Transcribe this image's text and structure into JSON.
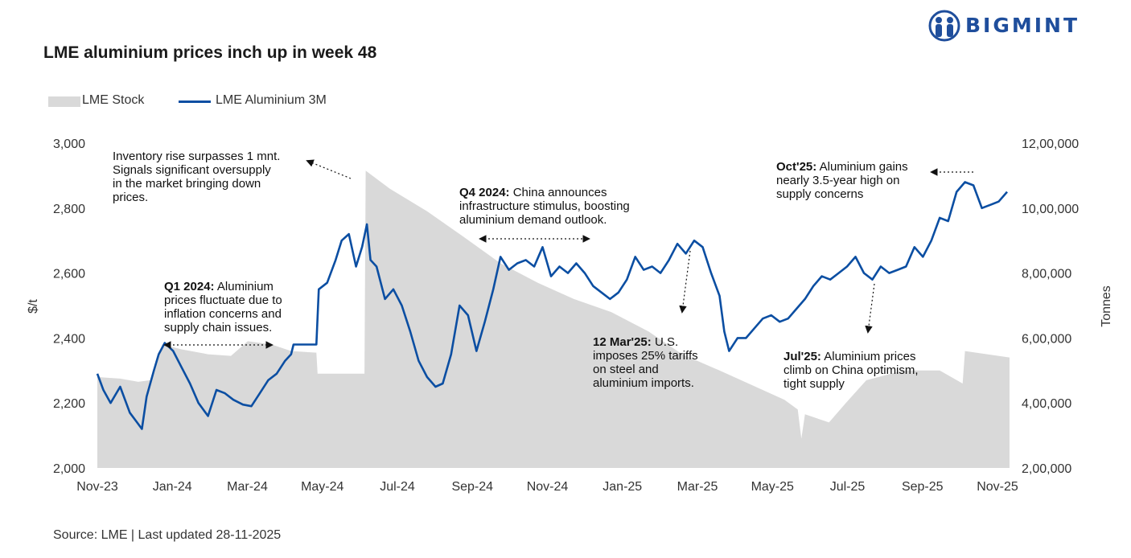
{
  "brand": {
    "name": "BIGMINT",
    "logo_icon": "people-circle-icon",
    "color": "#1f4e9c"
  },
  "title": "LME aluminium prices inch up in week 48",
  "source": "Source: LME | Last updated 28-11-2025",
  "chart_data": {
    "type": "line",
    "title": "LME aluminium prices inch up in week 48",
    "legend": {
      "placement": "top-left",
      "items": [
        "LME Stock",
        "LME Aluminium 3M"
      ]
    },
    "colors": {
      "stock": "#d9d9d9",
      "price": "#0b4ea2",
      "annotation": "#111111"
    },
    "grid": false,
    "xlabel": "",
    "ylabel": "$/t",
    "y2label": "Tonnes",
    "x_tick_labels": [
      "Nov-23",
      "Jan-24",
      "Mar-24",
      "May-24",
      "Jul-24",
      "Sep-24",
      "Nov-24",
      "Jan-25",
      "Mar-25",
      "May-25",
      "Jul-25",
      "Sep-25",
      "Nov-25"
    ],
    "x_range": [
      "2023-11-01",
      "2025-11-28"
    ],
    "ylim": [
      2000,
      3000
    ],
    "y_ticks": [
      2000,
      2200,
      2400,
      2600,
      2800,
      3000
    ],
    "y_tick_labels": [
      "2,000",
      "2,200",
      "2,400",
      "2,600",
      "2,800",
      "3,000"
    ],
    "y2lim": [
      200000,
      1200000
    ],
    "y2_ticks": [
      200000,
      400000,
      600000,
      800000,
      1000000,
      1200000
    ],
    "y2_tick_labels": [
      "2,00,000",
      "4,00,000",
      "6,00,000",
      "8,00,000",
      "10,00,000",
      "12,00,000"
    ],
    "series": [
      {
        "name": "LME Stock",
        "type": "area",
        "axis": "right",
        "points": [
          [
            "2023-11-01",
            480000
          ],
          [
            "2023-11-20",
            475000
          ],
          [
            "2023-12-05",
            465000
          ],
          [
            "2023-12-15",
            470000
          ],
          [
            "2023-12-25",
            580000
          ],
          [
            "2024-01-10",
            565000
          ],
          [
            "2024-02-01",
            550000
          ],
          [
            "2024-02-20",
            545000
          ],
          [
            "2024-03-05",
            590000
          ],
          [
            "2024-03-25",
            580000
          ],
          [
            "2024-04-10",
            560000
          ],
          [
            "2024-05-01",
            555000
          ],
          [
            "2024-05-02",
            490000
          ],
          [
            "2024-06-10",
            490000
          ],
          [
            "2024-06-11",
            1115000
          ],
          [
            "2024-07-01",
            1060000
          ],
          [
            "2024-08-01",
            990000
          ],
          [
            "2024-09-01",
            910000
          ],
          [
            "2024-10-01",
            830000
          ],
          [
            "2024-11-01",
            770000
          ],
          [
            "2024-12-01",
            720000
          ],
          [
            "2025-01-01",
            680000
          ],
          [
            "2025-02-01",
            620000
          ],
          [
            "2025-03-01",
            550000
          ],
          [
            "2025-04-01",
            500000
          ],
          [
            "2025-05-01",
            450000
          ],
          [
            "2025-05-25",
            410000
          ],
          [
            "2025-06-05",
            380000
          ],
          [
            "2025-06-08",
            290000
          ],
          [
            "2025-06-11",
            365000
          ],
          [
            "2025-07-01",
            340000
          ],
          [
            "2025-07-15",
            400000
          ],
          [
            "2025-08-01",
            470000
          ],
          [
            "2025-09-01",
            500000
          ],
          [
            "2025-10-01",
            500000
          ],
          [
            "2025-10-20",
            460000
          ],
          [
            "2025-10-22",
            560000
          ],
          [
            "2025-11-28",
            540000
          ]
        ]
      },
      {
        "name": "LME Aluminium 3M",
        "type": "line",
        "axis": "left",
        "points": [
          [
            "2023-11-01",
            2290
          ],
          [
            "2023-11-06",
            2240
          ],
          [
            "2023-11-12",
            2200
          ],
          [
            "2023-11-20",
            2250
          ],
          [
            "2023-11-28",
            2170
          ],
          [
            "2023-12-04",
            2140
          ],
          [
            "2023-12-08",
            2120
          ],
          [
            "2023-12-12",
            2220
          ],
          [
            "2023-12-18",
            2300
          ],
          [
            "2023-12-22",
            2350
          ],
          [
            "2023-12-27",
            2385
          ],
          [
            "2024-01-03",
            2360
          ],
          [
            "2024-01-10",
            2310
          ],
          [
            "2024-01-17",
            2260
          ],
          [
            "2024-01-24",
            2200
          ],
          [
            "2024-02-01",
            2160
          ],
          [
            "2024-02-08",
            2240
          ],
          [
            "2024-02-15",
            2230
          ],
          [
            "2024-02-22",
            2210
          ],
          [
            "2024-03-01",
            2195
          ],
          [
            "2024-03-08",
            2190
          ],
          [
            "2024-03-15",
            2230
          ],
          [
            "2024-03-22",
            2270
          ],
          [
            "2024-03-29",
            2290
          ],
          [
            "2024-04-05",
            2330
          ],
          [
            "2024-04-10",
            2350
          ],
          [
            "2024-04-12",
            2380
          ],
          [
            "2024-05-01",
            2380
          ],
          [
            "2024-05-03",
            2550
          ],
          [
            "2024-05-10",
            2570
          ],
          [
            "2024-05-17",
            2640
          ],
          [
            "2024-05-22",
            2700
          ],
          [
            "2024-05-28",
            2720
          ],
          [
            "2024-06-03",
            2620
          ],
          [
            "2024-06-08",
            2680
          ],
          [
            "2024-06-12",
            2750
          ],
          [
            "2024-06-15",
            2640
          ],
          [
            "2024-06-20",
            2620
          ],
          [
            "2024-06-27",
            2520
          ],
          [
            "2024-07-04",
            2550
          ],
          [
            "2024-07-11",
            2500
          ],
          [
            "2024-07-18",
            2420
          ],
          [
            "2024-07-25",
            2330
          ],
          [
            "2024-08-01",
            2280
          ],
          [
            "2024-08-08",
            2250
          ],
          [
            "2024-08-14",
            2260
          ],
          [
            "2024-08-21",
            2350
          ],
          [
            "2024-08-28",
            2500
          ],
          [
            "2024-09-04",
            2470
          ],
          [
            "2024-09-11",
            2360
          ],
          [
            "2024-09-18",
            2450
          ],
          [
            "2024-09-25",
            2550
          ],
          [
            "2024-10-01",
            2650
          ],
          [
            "2024-10-08",
            2610
          ],
          [
            "2024-10-15",
            2630
          ],
          [
            "2024-10-22",
            2640
          ],
          [
            "2024-10-29",
            2620
          ],
          [
            "2024-11-05",
            2680
          ],
          [
            "2024-11-12",
            2590
          ],
          [
            "2024-11-19",
            2620
          ],
          [
            "2024-11-26",
            2600
          ],
          [
            "2024-12-03",
            2630
          ],
          [
            "2024-12-10",
            2600
          ],
          [
            "2024-12-17",
            2560
          ],
          [
            "2024-12-24",
            2540
          ],
          [
            "2024-12-31",
            2520
          ],
          [
            "2025-01-07",
            2540
          ],
          [
            "2025-01-14",
            2580
          ],
          [
            "2025-01-21",
            2650
          ],
          [
            "2025-01-28",
            2610
          ],
          [
            "2025-02-04",
            2620
          ],
          [
            "2025-02-11",
            2600
          ],
          [
            "2025-02-18",
            2640
          ],
          [
            "2025-02-25",
            2690
          ],
          [
            "2025-03-04",
            2660
          ],
          [
            "2025-03-11",
            2700
          ],
          [
            "2025-03-18",
            2680
          ],
          [
            "2025-03-25",
            2600
          ],
          [
            "2025-04-01",
            2530
          ],
          [
            "2025-04-05",
            2420
          ],
          [
            "2025-04-09",
            2360
          ],
          [
            "2025-04-16",
            2400
          ],
          [
            "2025-04-23",
            2400
          ],
          [
            "2025-04-30",
            2430
          ],
          [
            "2025-05-07",
            2460
          ],
          [
            "2025-05-14",
            2470
          ],
          [
            "2025-05-21",
            2450
          ],
          [
            "2025-05-28",
            2460
          ],
          [
            "2025-06-04",
            2490
          ],
          [
            "2025-06-11",
            2520
          ],
          [
            "2025-06-18",
            2560
          ],
          [
            "2025-06-25",
            2590
          ],
          [
            "2025-07-02",
            2580
          ],
          [
            "2025-07-09",
            2600
          ],
          [
            "2025-07-16",
            2620
          ],
          [
            "2025-07-23",
            2650
          ],
          [
            "2025-07-30",
            2600
          ],
          [
            "2025-08-06",
            2580
          ],
          [
            "2025-08-13",
            2620
          ],
          [
            "2025-08-20",
            2600
          ],
          [
            "2025-08-27",
            2610
          ],
          [
            "2025-09-03",
            2620
          ],
          [
            "2025-09-10",
            2680
          ],
          [
            "2025-09-17",
            2650
          ],
          [
            "2025-09-24",
            2700
          ],
          [
            "2025-10-01",
            2770
          ],
          [
            "2025-10-08",
            2760
          ],
          [
            "2025-10-15",
            2850
          ],
          [
            "2025-10-22",
            2880
          ],
          [
            "2025-10-29",
            2870
          ],
          [
            "2025-11-05",
            2800
          ],
          [
            "2025-11-12",
            2810
          ],
          [
            "2025-11-19",
            2820
          ],
          [
            "2025-11-26",
            2850
          ]
        ]
      }
    ],
    "annotations": [
      {
        "id": "inventory",
        "bold": "",
        "lines": [
          "Inventory rise surpasses 1 mnt.",
          "Signals significant oversupply",
          "in the market bringing down",
          "prices."
        ]
      },
      {
        "id": "q1",
        "bold": "Q1 2024:",
        "lines": [
          " Aluminium",
          "prices fluctuate due to",
          "inflation concerns and",
          "supply chain issues."
        ]
      },
      {
        "id": "q4",
        "bold": "Q4 2024:",
        "lines": [
          " China announces",
          "infrastructure stimulus, boosting",
          "aluminium demand outlook."
        ]
      },
      {
        "id": "mar25",
        "bold": "12 Mar'25:",
        "lines": [
          " U.S.",
          "imposes 25% tariffs",
          "on steel and",
          "aluminium imports."
        ]
      },
      {
        "id": "oct25",
        "bold": "Oct'25:",
        "lines": [
          " Aluminium gains",
          "nearly 3.5-year high on",
          "supply concerns"
        ]
      },
      {
        "id": "jul25",
        "bold": "Jul'25:",
        "lines": [
          " Aluminium prices",
          "climb on China optimism,",
          "tight supply"
        ]
      }
    ]
  }
}
